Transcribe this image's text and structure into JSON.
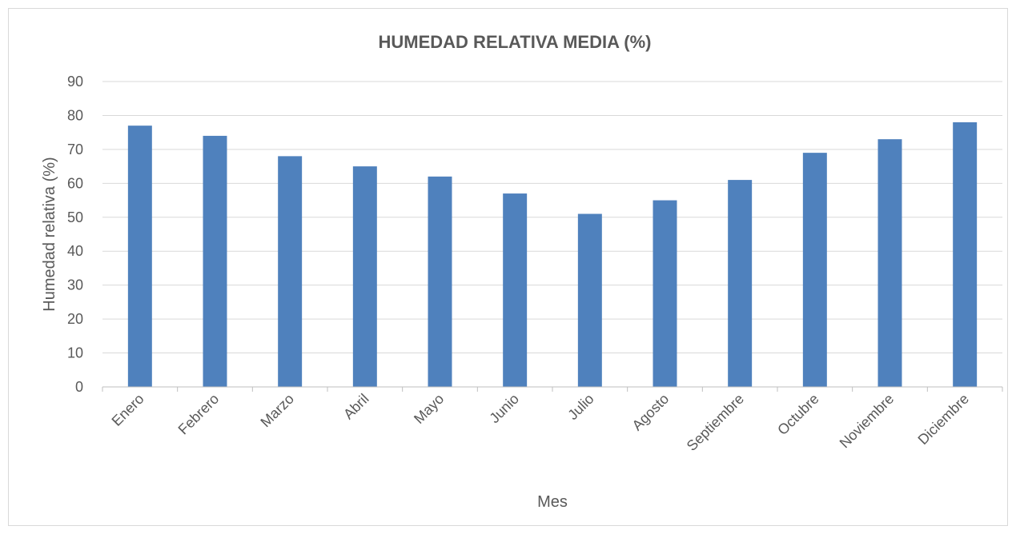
{
  "chart_data": {
    "type": "bar",
    "title": "HUMEDAD RELATIVA MEDIA (%)",
    "xlabel": "Mes",
    "ylabel": "Humedad relativa (%)",
    "ylim": [
      0,
      90
    ],
    "yticks": [
      0,
      10,
      20,
      30,
      40,
      50,
      60,
      70,
      80,
      90
    ],
    "grid": true,
    "legend": "none",
    "bar_color": "#4f81bd",
    "categories": [
      "Enero",
      "Febrero",
      "Marzo",
      "Abril",
      "Mayo",
      "Junio",
      "Julio",
      "Agosto",
      "Septiembre",
      "Octubre",
      "Noviembre",
      "Diciembre"
    ],
    "values": [
      77,
      74,
      68,
      65,
      62,
      57,
      51,
      55,
      61,
      69,
      73,
      78
    ]
  }
}
